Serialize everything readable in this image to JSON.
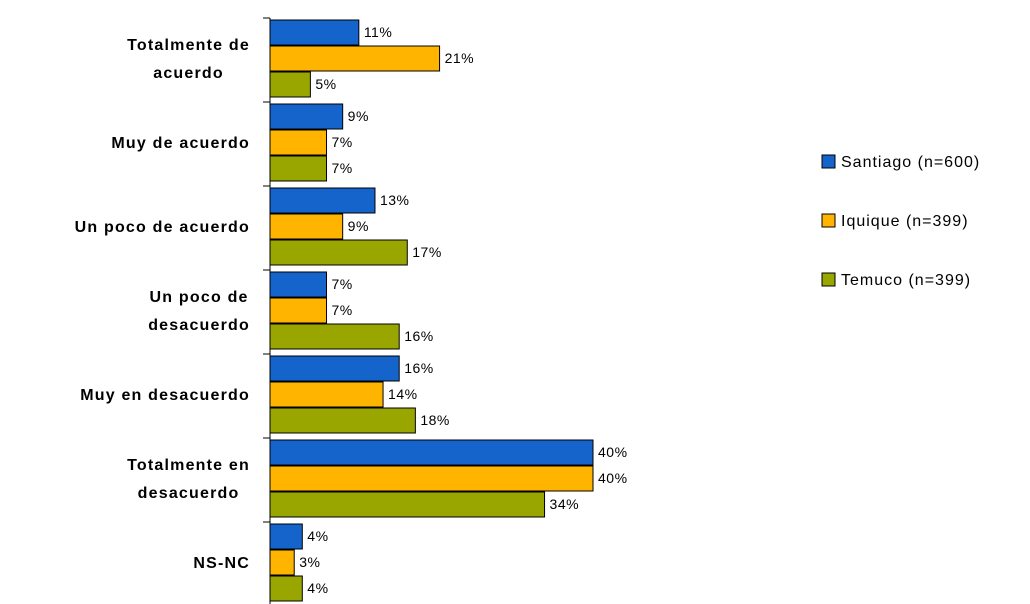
{
  "chart_data": {
    "type": "bar",
    "orientation": "horizontal",
    "categories": [
      "Totalmente de\nacuerdo",
      "Muy de acuerdo",
      "Un poco de acuerdo",
      "Un poco de\ndesacuerdo",
      "Muy en desacuerdo",
      "Totalmente en\ndesacuerdo",
      "NS-NC"
    ],
    "series": [
      {
        "name": "Santiago (n=600)",
        "color": "#1464cc",
        "values": [
          11,
          9,
          13,
          7,
          16,
          40,
          4
        ],
        "value_labels": [
          "11%",
          "9%",
          "13%",
          "7%",
          "16%",
          "40%",
          "4%"
        ]
      },
      {
        "name": "Iquique (n=399)",
        "color": "#ffb400",
        "values": [
          21,
          7,
          9,
          7,
          14,
          40,
          3
        ],
        "value_labels": [
          "21%",
          "7%",
          "9%",
          "7%",
          "14%",
          "40%",
          "3%"
        ]
      },
      {
        "name": "Temuco (n=399)",
        "color": "#99a600",
        "values": [
          5,
          7,
          17,
          16,
          18,
          34,
          4
        ],
        "value_labels": [
          "5%",
          "7%",
          "17%",
          "16%",
          "18%",
          "34%",
          "4%"
        ]
      }
    ],
    "legend": "right"
  }
}
